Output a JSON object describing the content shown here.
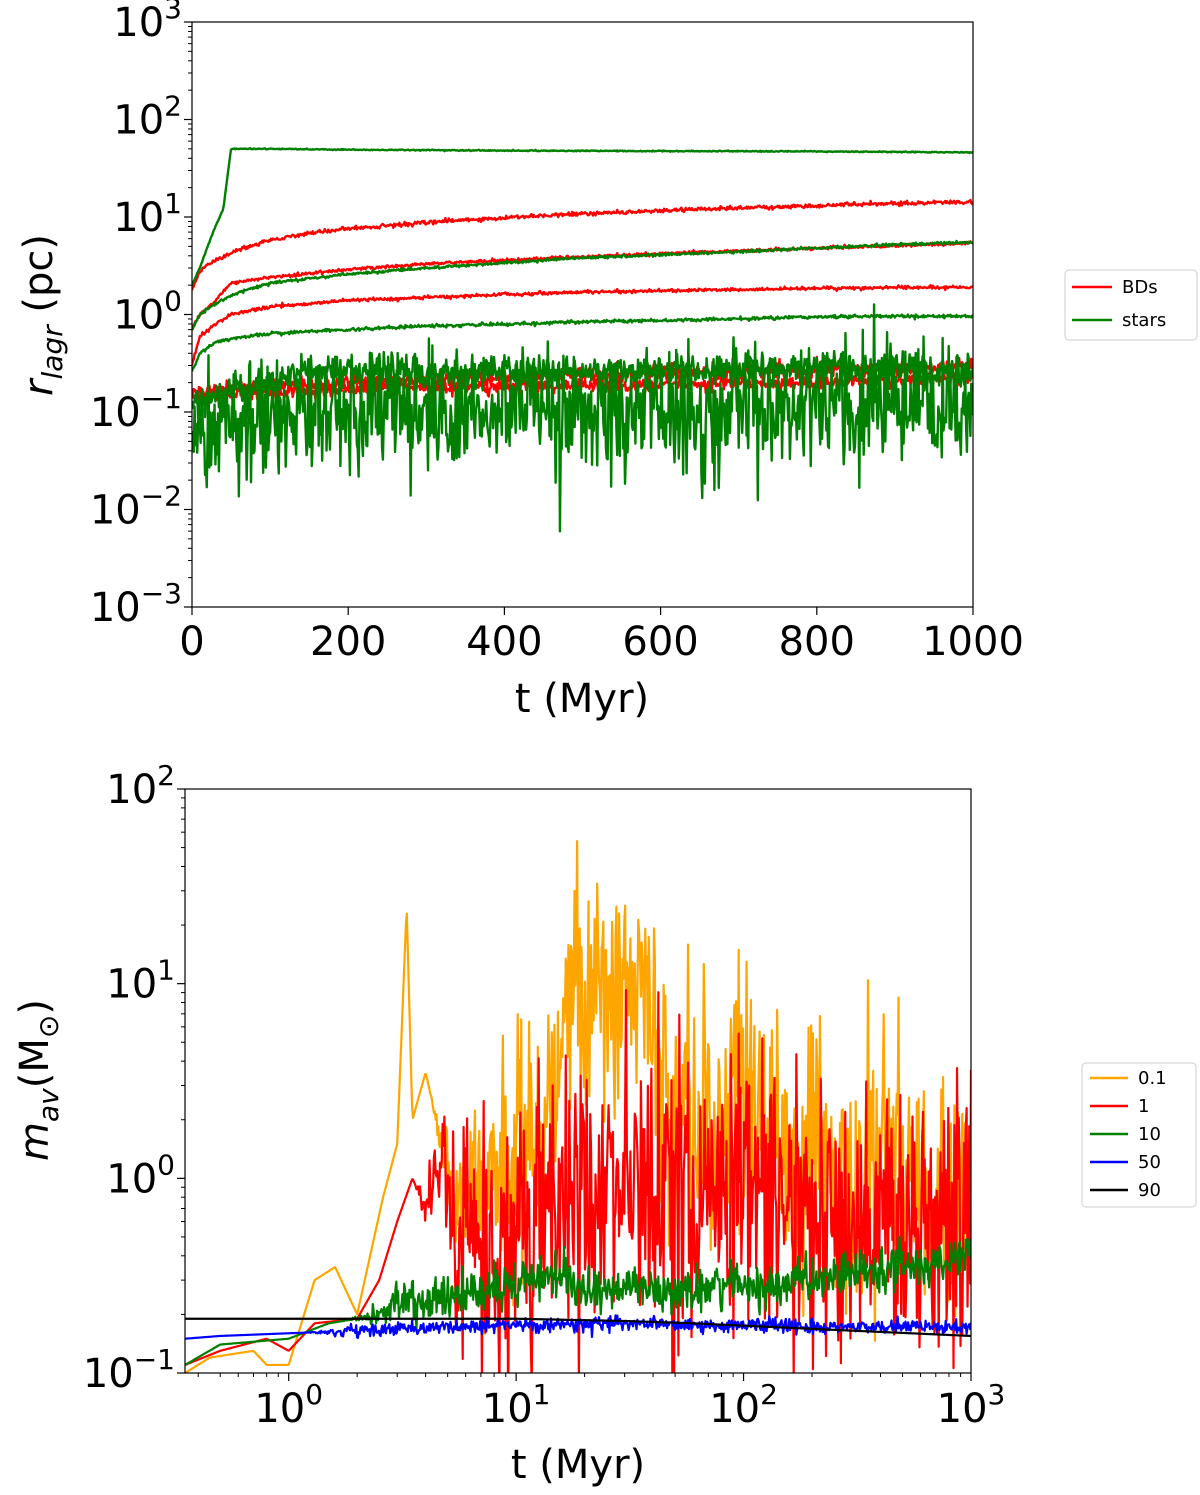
{
  "chart_data": [
    {
      "type": "line",
      "xscale": "linear",
      "yscale": "log",
      "xlabel": "t (Myr)",
      "ylabel": {
        "base": "r",
        "sub": "lagr",
        "unit": " (pc)"
      },
      "xlim": [
        0,
        1000
      ],
      "ylim": [
        0.001,
        1000
      ],
      "xticks": [
        {
          "value": 0,
          "label": "0"
        },
        {
          "value": 200,
          "label": "200"
        },
        {
          "value": 400,
          "label": "400"
        },
        {
          "value": 600,
          "label": "600"
        },
        {
          "value": 800,
          "label": "800"
        },
        {
          "value": 1000,
          "label": "1000"
        }
      ],
      "yticks": [
        {
          "value": 0.001,
          "base": "10",
          "exp": "−3"
        },
        {
          "value": 0.01,
          "base": "10",
          "exp": "−2"
        },
        {
          "value": 0.1,
          "base": "10",
          "exp": "−1"
        },
        {
          "value": 1,
          "base": "10",
          "exp": "0"
        },
        {
          "value": 10,
          "base": "10",
          "exp": "1"
        },
        {
          "value": 100,
          "base": "10",
          "exp": "2"
        },
        {
          "value": 1000,
          "base": "10",
          "exp": "3"
        }
      ],
      "legend": {
        "placement": "outside-right",
        "entries": [
          {
            "label": "BDs",
            "color": "#ff0000"
          },
          {
            "label": "stars",
            "color": "#008000"
          }
        ]
      },
      "series": [
        {
          "name": "BDs",
          "color": "#ff0000",
          "noise": 0.015,
          "x": [
            0,
            10,
            30,
            60,
            100,
            150,
            200,
            300,
            400,
            500,
            600,
            700,
            800,
            900,
            1000
          ],
          "y": [
            1.8,
            2.8,
            3.6,
            4.6,
            5.8,
            6.8,
            7.6,
            8.8,
            9.8,
            10.8,
            11.6,
            12.4,
            13.0,
            13.8,
            14.2
          ]
        },
        {
          "name": "BDs",
          "color": "#ff0000",
          "noise": 0.012,
          "x": [
            0,
            10,
            30,
            50,
            100,
            200,
            300,
            400,
            500,
            600,
            700,
            800,
            900,
            1000
          ],
          "y": [
            0.7,
            1.0,
            1.4,
            2.1,
            2.4,
            2.9,
            3.3,
            3.6,
            3.9,
            4.2,
            4.5,
            4.8,
            5.1,
            5.4
          ]
        },
        {
          "name": "BDs",
          "color": "#ff0000",
          "noise": 0.012,
          "x": [
            0,
            10,
            30,
            50,
            100,
            200,
            300,
            400,
            500,
            600,
            700,
            800,
            900,
            1000
          ],
          "y": [
            0.3,
            0.6,
            0.8,
            1.0,
            1.2,
            1.4,
            1.5,
            1.6,
            1.7,
            1.75,
            1.8,
            1.85,
            1.9,
            1.9
          ]
        },
        {
          "name": "BDs",
          "color": "#ff0000",
          "noise": 0.06,
          "x": [
            0,
            100,
            200,
            300,
            400,
            500,
            600,
            700,
            800,
            900,
            1000
          ],
          "y": [
            0.16,
            0.18,
            0.2,
            0.22,
            0.24,
            0.25,
            0.25,
            0.26,
            0.27,
            0.28,
            0.3
          ]
        },
        {
          "name": "BDs",
          "color": "#ff0000",
          "noise": 0.05,
          "x": [
            0,
            100,
            200,
            300,
            400,
            500,
            600,
            700,
            800,
            900,
            1000
          ],
          "y": [
            0.15,
            0.16,
            0.17,
            0.18,
            0.18,
            0.19,
            0.19,
            0.2,
            0.2,
            0.21,
            0.22
          ]
        },
        {
          "name": "stars",
          "color": "#008000",
          "noise": 0.004,
          "x": [
            0,
            10,
            20,
            30,
            40,
            50,
            100,
            200,
            400,
            600,
            800,
            1000
          ],
          "y": [
            2.0,
            3.0,
            5.0,
            8.0,
            12.0,
            50.0,
            50.0,
            49.0,
            48.0,
            47.5,
            47.0,
            46.0
          ]
        },
        {
          "name": "stars",
          "color": "#008000",
          "noise": 0.01,
          "x": [
            0,
            10,
            30,
            60,
            100,
            200,
            300,
            400,
            500,
            600,
            700,
            800,
            900,
            1000
          ],
          "y": [
            0.7,
            1.0,
            1.3,
            1.7,
            2.1,
            2.6,
            3.0,
            3.4,
            3.8,
            4.1,
            4.4,
            4.8,
            5.2,
            5.5
          ]
        },
        {
          "name": "stars",
          "color": "#008000",
          "noise": 0.012,
          "x": [
            0,
            10,
            30,
            60,
            100,
            200,
            300,
            400,
            500,
            600,
            700,
            800,
            900,
            1000
          ],
          "y": [
            0.26,
            0.4,
            0.52,
            0.58,
            0.64,
            0.7,
            0.76,
            0.8,
            0.84,
            0.87,
            0.9,
            0.95,
            0.96,
            0.95
          ]
        },
        {
          "name": "stars",
          "color": "#008000",
          "noise": 0.12,
          "x": [
            0,
            100,
            150,
            200,
            300,
            400,
            500,
            600,
            700,
            800,
            900,
            1000
          ],
          "y": [
            0.12,
            0.2,
            0.27,
            0.25,
            0.26,
            0.26,
            0.27,
            0.27,
            0.27,
            0.28,
            0.27,
            0.26
          ]
        },
        {
          "name": "stars",
          "color": "#008000",
          "noise": 0.45,
          "x": [
            0,
            50,
            100,
            200,
            300,
            400,
            500,
            600,
            700,
            770,
            800,
            900,
            1000
          ],
          "y": [
            0.06,
            0.08,
            0.1,
            0.1,
            0.1,
            0.1,
            0.1,
            0.1,
            0.1,
            0.1,
            0.13,
            0.12,
            0.1
          ]
        }
      ]
    },
    {
      "type": "line",
      "xscale": "log",
      "yscale": "log",
      "xlabel": "t (Myr)",
      "ylabel": {
        "base": "m",
        "sub": "av",
        "unit": "(M",
        "unitsub": "⊙",
        "close": ")"
      },
      "xlim": [
        0.35,
        1000
      ],
      "ylim": [
        0.1,
        100
      ],
      "xticks": [
        {
          "value": 1,
          "base": "10",
          "exp": "0"
        },
        {
          "value": 10,
          "base": "10",
          "exp": "1"
        },
        {
          "value": 100,
          "base": "10",
          "exp": "2"
        },
        {
          "value": 1000,
          "base": "10",
          "exp": "3"
        }
      ],
      "yticks": [
        {
          "value": 0.1,
          "base": "10",
          "exp": "−1"
        },
        {
          "value": 1,
          "base": "10",
          "exp": "0"
        },
        {
          "value": 10,
          "base": "10",
          "exp": "1"
        },
        {
          "value": 100,
          "base": "10",
          "exp": "2"
        }
      ],
      "legend": {
        "placement": "outside-right",
        "entries": [
          {
            "label": "0.1",
            "color": "#ffa500"
          },
          {
            "label": "1",
            "color": "#ff0000"
          },
          {
            "label": "10",
            "color": "#008000"
          },
          {
            "label": "50",
            "color": "#0000ff"
          },
          {
            "label": "90",
            "color": "#000000"
          }
        ]
      },
      "series": [
        {
          "name": "0.1",
          "color": "#ffa500",
          "noise": 0.35,
          "noiseFrom": 7,
          "x": [
            0.35,
            0.45,
            0.7,
            0.8,
            1.0,
            1.3,
            1.6,
            2.0,
            2.6,
            3.0,
            3.3,
            3.5,
            4.0,
            4.7,
            5.5,
            6.5,
            7.0,
            8.0,
            9.0,
            10.0,
            12.0,
            15.0,
            18.0,
            22.0,
            27.0,
            32.0,
            38.0,
            45.0,
            60.0,
            80.0,
            100.0,
            150.0,
            200.0,
            300.0,
            500.0,
            700.0,
            1000.0
          ],
          "y": [
            0.1,
            0.12,
            0.13,
            0.11,
            0.11,
            0.3,
            0.35,
            0.2,
            0.8,
            1.5,
            25.0,
            2.0,
            3.5,
            1.5,
            0.6,
            1.2,
            0.5,
            1.0,
            1.0,
            1.2,
            2.0,
            4.0,
            8.0,
            10.0,
            7.0,
            12.0,
            6.0,
            3.0,
            2.0,
            2.0,
            3.0,
            1.5,
            1.2,
            1.0,
            1.0,
            0.9,
            0.8
          ]
        },
        {
          "name": "1",
          "color": "#ff0000",
          "noise": 0.4,
          "noiseFrom": 6,
          "x": [
            0.35,
            0.5,
            0.8,
            1.0,
            1.3,
            2.0,
            2.5,
            3.0,
            3.5,
            4.0,
            4.8,
            5.5,
            6.5,
            8.0,
            10.0,
            13.0,
            17.0,
            22.0,
            30.0,
            38.0,
            50.0,
            70.0,
            100.0,
            150.0,
            200.0,
            300.0,
            500.0,
            700.0,
            1000.0
          ],
          "y": [
            0.11,
            0.13,
            0.15,
            0.13,
            0.18,
            0.19,
            0.3,
            0.6,
            1.0,
            0.7,
            1.3,
            0.35,
            0.5,
            0.4,
            0.5,
            1.0,
            0.9,
            0.8,
            1.0,
            1.0,
            0.8,
            0.8,
            1.0,
            0.7,
            0.6,
            0.6,
            0.6,
            0.6,
            0.65
          ]
        },
        {
          "name": "10",
          "color": "#008000",
          "noise": 0.06,
          "noiseFrom": 3,
          "x": [
            0.35,
            0.5,
            1.0,
            1.5,
            2.0,
            2.5,
            3.0,
            3.5,
            5.0,
            7.0,
            10.0,
            13.0,
            18.0,
            25.0,
            40.0,
            60.0,
            100.0,
            200.0,
            400.0,
            700.0,
            1000.0
          ],
          "y": [
            0.11,
            0.14,
            0.15,
            0.18,
            0.19,
            0.2,
            0.23,
            0.24,
            0.24,
            0.26,
            0.3,
            0.33,
            0.28,
            0.28,
            0.27,
            0.27,
            0.28,
            0.3,
            0.33,
            0.38,
            0.42
          ]
        },
        {
          "name": "50",
          "color": "#0000ff",
          "noise": 0.02,
          "noiseFrom": 2,
          "x": [
            0.35,
            0.5,
            1.0,
            2.0,
            4.0,
            10.0,
            30.0,
            100.0,
            300.0,
            1000.0
          ],
          "y": [
            0.15,
            0.155,
            0.16,
            0.165,
            0.17,
            0.175,
            0.18,
            0.175,
            0.172,
            0.172
          ]
        },
        {
          "name": "90",
          "color": "#000000",
          "noise": 0.0,
          "noiseFrom": 1,
          "x": [
            0.35,
            1.0,
            5.0,
            10.0,
            30.0,
            60.0,
            100.0,
            300.0,
            1000.0
          ],
          "y": [
            0.19,
            0.19,
            0.19,
            0.19,
            0.185,
            0.18,
            0.175,
            0.165,
            0.155
          ]
        }
      ]
    }
  ]
}
